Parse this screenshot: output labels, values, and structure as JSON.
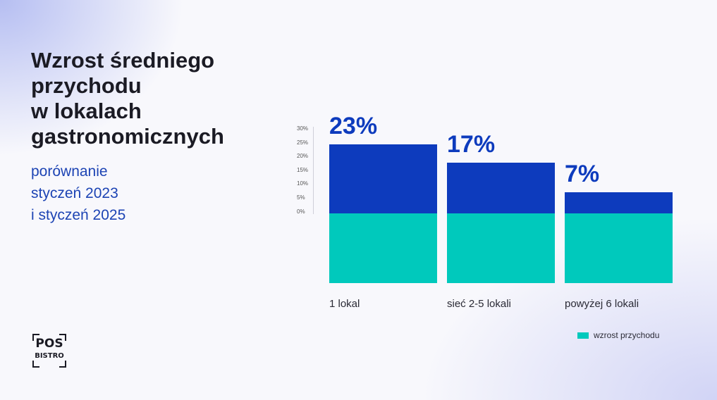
{
  "header": {
    "title": "Wzrost średniego\nprzychodu\nw lokalach\ngastronomicznych",
    "subtitle": "porównanie\nstyczeń 2023\ni styczeń 2025"
  },
  "chart_data": {
    "type": "bar",
    "categories": [
      "1 lokal",
      "sieć 2-5 lokali",
      "powyżej 6 lokali"
    ],
    "series": [
      {
        "name": "wzrost przychodu",
        "values": [
          23,
          17,
          7
        ]
      }
    ],
    "value_labels": [
      "23%",
      "17%",
      "7%"
    ],
    "y_ticks": [
      "30%",
      "25%",
      "20%",
      "15%",
      "10%",
      "5%",
      "0%"
    ],
    "ylim": [
      0,
      30
    ],
    "legend_position": "bottom-right",
    "grid": false,
    "colors": {
      "bar_top": "#0d3bbd",
      "bar_base": "#00c9bc",
      "value_text": "#0d3bbd"
    }
  },
  "legend": {
    "label": "wzrost przychodu",
    "color": "#00c9bc"
  },
  "logo": {
    "main": "POS",
    "sub": "BISTRO"
  }
}
